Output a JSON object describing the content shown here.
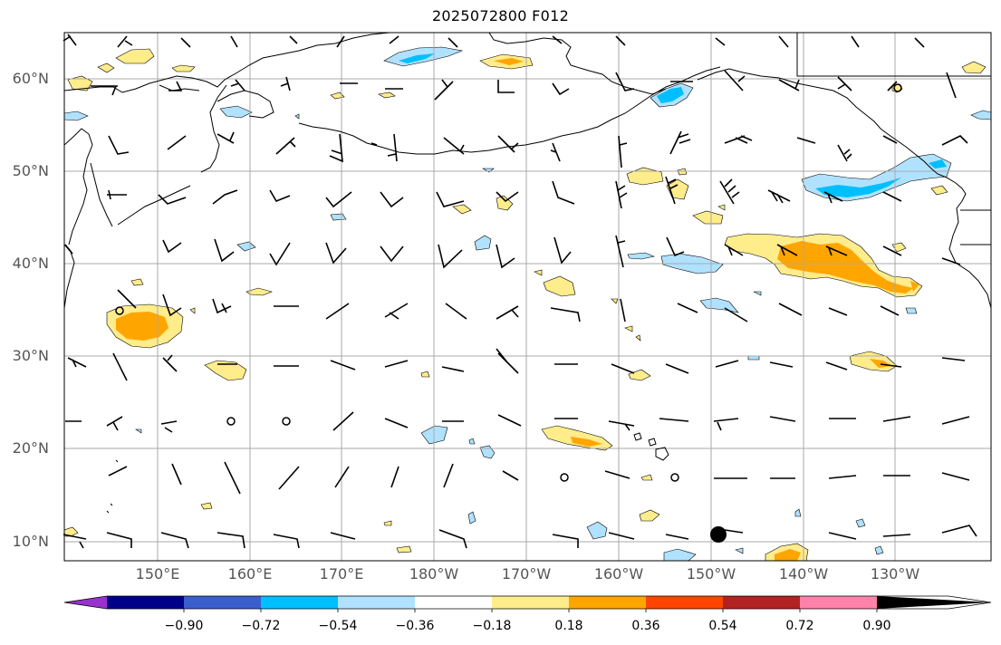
{
  "title": "2025072800 F012",
  "map": {
    "lat_labels": [
      "60°N",
      "50°N",
      "40°N",
      "30°N",
      "20°N",
      "10°N"
    ],
    "lon_labels": [
      "150°E",
      "160°E",
      "170°E",
      "180°W",
      "170°W",
      "160°W",
      "150°W",
      "140°W",
      "130°W"
    ]
  },
  "colorbar": {
    "ticks": [
      "−0.90",
      "−0.72",
      "−0.54",
      "−0.36",
      "−0.18",
      "0.18",
      "0.36",
      "0.54",
      "0.72",
      "0.90"
    ],
    "colors": [
      "#9932CC",
      "#00008B",
      "#3A5FCD",
      "#00BFFF",
      "#B0E2FF",
      "#FFFFFF",
      "#FFEC8B",
      "#FFA500",
      "#FF4500",
      "#B22222",
      "#FF82AB"
    ]
  },
  "colors": {
    "land": "#000000",
    "grid": "#a9a9a9",
    "light_blue": "#B0E2FF",
    "blue": "#00BFFF",
    "light_yellow": "#FFEC8B",
    "orange": "#FFA500"
  }
}
